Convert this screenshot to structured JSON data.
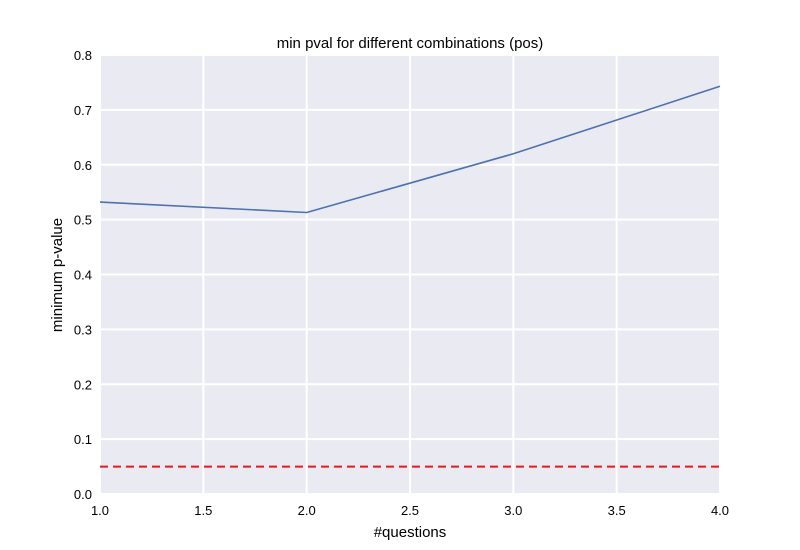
{
  "colors": {
    "plot_background": "#EAEAF2",
    "grid": "#FFFFFF",
    "series_line": "#4C72B0",
    "threshold_line": "#E41A1C"
  },
  "chart_data": {
    "type": "line",
    "title": "min pval for different combinations (pos)",
    "xlabel": "#questions",
    "ylabel": "minimum p-value",
    "xlim": [
      1.0,
      4.0
    ],
    "ylim": [
      0.0,
      0.8
    ],
    "grid": true,
    "x_ticks": [
      "1.0",
      "1.5",
      "2.0",
      "2.5",
      "3.0",
      "3.5",
      "4.0"
    ],
    "y_ticks": [
      "0.0",
      "0.1",
      "0.2",
      "0.3",
      "0.4",
      "0.5",
      "0.6",
      "0.7",
      "0.8"
    ],
    "series": [
      {
        "x": [
          1,
          2,
          3,
          4
        ],
        "values": [
          0.532,
          0.513,
          0.62,
          0.743
        ],
        "color": "#4C72B0",
        "style": "solid"
      }
    ],
    "reference_lines": [
      {
        "orientation": "horizontal",
        "value": 0.05,
        "color": "#E41A1C",
        "style": "dashed"
      }
    ]
  }
}
